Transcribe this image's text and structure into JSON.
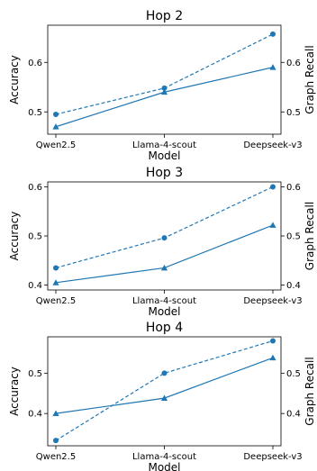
{
  "chart_data": [
    {
      "type": "line",
      "title": "Hop 2",
      "xlabel": "Model",
      "ylabel_left": "Accuracy",
      "ylabel_right": "Graph Recall",
      "categories": [
        "Qwen2.5",
        "Llama-4-scout",
        "Deepseek-v3"
      ],
      "left_axis": {
        "ylim": [
          0.455,
          0.675
        ],
        "ticks": [
          0.5,
          0.6
        ],
        "tick_labels": [
          "0.5",
          "0.6"
        ]
      },
      "right_axis": {
        "ylim": [
          0.455,
          0.675
        ],
        "ticks": [
          0.5,
          0.6
        ],
        "tick_labels": [
          "0.5",
          "0.6"
        ]
      },
      "series": [
        {
          "axis": "left",
          "values": [
            0.47,
            0.54,
            0.59
          ],
          "marker": "triangle",
          "line_style": "solid",
          "color": "#1f77b4"
        },
        {
          "axis": "right",
          "values": [
            0.495,
            0.548,
            0.657
          ],
          "marker": "circle",
          "line_style": "dashed",
          "color": "#1f77b4"
        }
      ]
    },
    {
      "type": "line",
      "title": "Hop 3",
      "xlabel": "Model",
      "ylabel_left": "Accuracy",
      "ylabel_right": "Graph Recall",
      "categories": [
        "Qwen2.5",
        "Llama-4-scout",
        "Deepseek-v3"
      ],
      "left_axis": {
        "ylim": [
          0.39,
          0.61
        ],
        "ticks": [
          0.4,
          0.5,
          0.6
        ],
        "tick_labels": [
          "0.4",
          "0.5",
          "0.6"
        ]
      },
      "right_axis": {
        "ylim": [
          0.39,
          0.61
        ],
        "ticks": [
          0.4,
          0.5,
          0.6
        ],
        "tick_labels": [
          "0.4",
          "0.5",
          "0.6"
        ]
      },
      "series": [
        {
          "axis": "left",
          "values": [
            0.405,
            0.435,
            0.522
          ],
          "marker": "triangle",
          "line_style": "solid",
          "color": "#1f77b4"
        },
        {
          "axis": "right",
          "values": [
            0.435,
            0.496,
            0.6
          ],
          "marker": "circle",
          "line_style": "dashed",
          "color": "#1f77b4"
        }
      ]
    },
    {
      "type": "line",
      "title": "Hop 4",
      "xlabel": "Model",
      "ylabel_left": "Accuracy",
      "ylabel_right": "Graph Recall",
      "categories": [
        "Qwen2.5",
        "Llama-4-scout",
        "Deepseek-v3"
      ],
      "left_axis": {
        "ylim": [
          0.32,
          0.59
        ],
        "ticks": [
          0.4,
          0.5
        ],
        "tick_labels": [
          "0.4",
          "0.5"
        ]
      },
      "right_axis": {
        "ylim": [
          0.32,
          0.59
        ],
        "ticks": [
          0.4,
          0.5
        ],
        "tick_labels": [
          "0.4",
          "0.5"
        ]
      },
      "series": [
        {
          "axis": "left",
          "values": [
            0.4,
            0.438,
            0.538
          ],
          "marker": "triangle",
          "line_style": "solid",
          "color": "#1f77b4"
        },
        {
          "axis": "right",
          "values": [
            0.333,
            0.5,
            0.58
          ],
          "marker": "circle",
          "line_style": "dashed",
          "color": "#1f77b4"
        }
      ]
    }
  ]
}
